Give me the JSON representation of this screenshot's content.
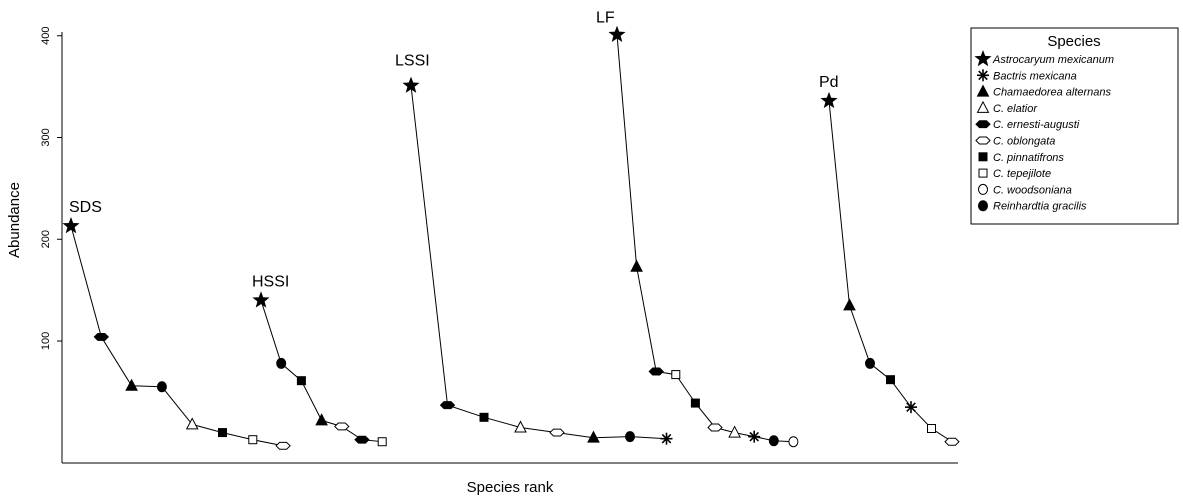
{
  "chart_data": {
    "type": "line",
    "xlabel": "Species rank",
    "ylabel": "Abundance",
    "ylim": [
      -40,
      400
    ],
    "yticks": [
      100,
      200,
      300,
      400
    ],
    "grid": false,
    "legend_placement": "top-right",
    "legend": {
      "title": "Species",
      "entries": [
        {
          "symbol": "star",
          "label": "Astrocaryum mexicanum"
        },
        {
          "symbol": "asterisk",
          "label": "Bactris mexicana"
        },
        {
          "symbol": "triangle-filled",
          "label": "Chamaedorea alternans"
        },
        {
          "symbol": "triangle-open",
          "label": "C. elatior"
        },
        {
          "symbol": "hexagon-filled",
          "label": "C. ernesti-augusti"
        },
        {
          "symbol": "hexagon-open",
          "label": "C. oblongata"
        },
        {
          "symbol": "square-filled",
          "label": "C. pinnatifrons"
        },
        {
          "symbol": "square-open",
          "label": "C. tepejilote"
        },
        {
          "symbol": "circle-open",
          "label": "C. woodsoniana"
        },
        {
          "symbol": "circle-filled",
          "label": "Reinhardtia gracilis"
        }
      ]
    },
    "series": [
      {
        "name": "SDS",
        "x": [
          1,
          2,
          3,
          4,
          5,
          6,
          7,
          8
        ],
        "y": [
          213,
          104,
          56,
          55,
          18,
          10,
          3,
          -3
        ],
        "symbols": [
          "star",
          "hexagon-filled",
          "triangle-filled",
          "circle-filled",
          "triangle-open",
          "square-filled",
          "square-open",
          "hexagon-open"
        ]
      },
      {
        "name": "HSSI",
        "x": [
          1,
          2,
          3,
          4,
          5,
          6,
          7
        ],
        "y": [
          140,
          78,
          61,
          22,
          16,
          3,
          1
        ],
        "symbols": [
          "star",
          "circle-filled",
          "square-filled",
          "triangle-filled",
          "hexagon-open",
          "hexagon-filled",
          "square-open"
        ]
      },
      {
        "name": "LSSI",
        "x": [
          1,
          2,
          3,
          4,
          5,
          6,
          7,
          8
        ],
        "y": [
          351,
          37,
          25,
          15,
          10,
          5,
          6,
          4
        ],
        "symbols": [
          "star",
          "hexagon-filled",
          "square-filled",
          "triangle-open",
          "hexagon-open",
          "triangle-filled",
          "circle-filled",
          "asterisk"
        ]
      },
      {
        "name": "LF",
        "x": [
          1,
          2,
          3,
          4,
          5,
          6,
          7,
          8,
          9,
          10
        ],
        "y": [
          401,
          173,
          70,
          67,
          39,
          15,
          10,
          6,
          2,
          1
        ],
        "symbols": [
          "star",
          "triangle-filled",
          "hexagon-filled",
          "square-open",
          "square-filled",
          "hexagon-open",
          "triangle-open",
          "asterisk",
          "circle-filled",
          "circle-open"
        ]
      },
      {
        "name": "Pd",
        "x": [
          1,
          2,
          3,
          4,
          5,
          6,
          7
        ],
        "y": [
          336,
          135,
          78,
          62,
          35,
          14,
          1
        ],
        "symbols": [
          "star",
          "triangle-filled",
          "circle-filled",
          "square-filled",
          "asterisk",
          "square-open",
          "hexagon-open"
        ]
      }
    ]
  }
}
